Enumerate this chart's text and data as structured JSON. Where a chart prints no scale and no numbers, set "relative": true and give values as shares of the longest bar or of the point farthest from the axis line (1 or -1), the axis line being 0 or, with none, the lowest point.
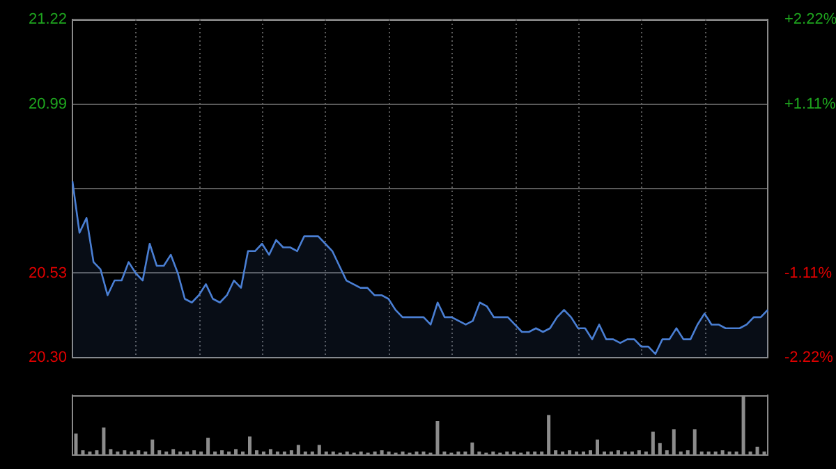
{
  "chart_data": [
    {
      "type": "area",
      "categories": [
        null,
        null,
        null,
        null,
        null,
        null,
        null,
        null,
        null,
        null,
        null,
        null,
        null,
        null,
        null,
        null,
        null,
        null,
        null,
        null,
        null,
        null,
        null,
        null,
        null,
        null,
        null,
        null,
        null,
        null,
        null,
        null,
        null,
        null,
        null,
        null,
        null,
        null,
        null,
        null,
        null,
        null,
        null,
        null,
        null,
        null,
        null,
        null,
        null,
        null,
        null,
        null,
        null,
        null,
        null,
        null,
        null,
        null,
        null,
        null,
        null,
        null,
        null,
        null,
        null,
        null,
        null,
        null,
        null,
        null,
        null,
        null,
        null,
        null,
        null,
        null,
        null,
        null,
        null,
        null,
        null,
        null,
        null,
        null,
        null,
        null,
        null,
        null,
        null,
        null,
        null,
        null,
        null,
        null,
        null,
        null,
        null,
        null,
        null,
        null
      ],
      "series": [
        {
          "color": "#4a7fd4",
          "values": [
            20.78,
            20.64,
            20.68,
            20.56,
            20.54,
            20.47,
            20.51,
            20.51,
            20.56,
            20.53,
            20.51,
            20.61,
            20.55,
            20.55,
            20.58,
            20.53,
            20.46,
            20.45,
            20.47,
            20.5,
            20.46,
            20.45,
            20.47,
            20.51,
            20.49,
            20.59,
            20.59,
            20.61,
            20.58,
            20.62,
            20.6,
            20.6,
            20.59,
            20.63,
            20.63,
            20.63,
            20.61,
            20.59,
            20.55,
            20.51,
            20.5,
            20.49,
            20.49,
            20.47,
            20.47,
            20.46,
            20.43,
            20.41,
            20.41,
            20.41,
            20.41,
            20.39,
            20.45,
            20.41,
            20.41,
            20.4,
            20.39,
            20.4,
            20.45,
            20.44,
            20.41,
            20.41,
            20.41,
            20.39,
            20.37,
            20.37,
            20.38,
            20.37,
            20.38,
            20.41,
            20.43,
            20.41,
            20.38,
            20.38,
            20.35,
            20.39,
            20.35,
            20.35,
            20.34,
            20.35,
            20.35,
            20.33,
            20.33,
            20.31,
            20.35,
            20.35,
            20.38,
            20.35,
            20.35,
            20.39,
            20.42,
            20.39,
            20.39,
            20.38,
            20.38,
            20.38,
            20.39,
            20.41,
            20.41,
            20.43
          ]
        }
      ],
      "ylim": [
        20.3,
        21.22
      ],
      "yticks": [
        {
          "value": 20.3,
          "label": "20.30"
        },
        20.53,
        {
          "value": 20.76,
          "label": null
        },
        20.99,
        21.22
      ],
      "y2lim": [
        -2.22,
        2.22
      ],
      "y2ticks": [
        {
          "value": -2.22,
          "label": "-2.22%"
        },
        {
          "value": -1.11,
          "label": "-1.11%"
        },
        {
          "value": 1.11,
          "label": "+1.11%"
        },
        {
          "value": 2.22,
          "label": "+2.22%"
        }
      ],
      "grid": true,
      "legend": false,
      "marker": "none",
      "line_style": "solid",
      "tick_labels": "y"
    },
    {
      "type": "bar",
      "categories": [
        null,
        null,
        null,
        null,
        null,
        null,
        null,
        null,
        null,
        null,
        null,
        null,
        null,
        null,
        null,
        null,
        null,
        null,
        null,
        null,
        null,
        null,
        null,
        null,
        null,
        null,
        null,
        null,
        null,
        null,
        null,
        null,
        null,
        null,
        null,
        null,
        null,
        null,
        null,
        null,
        null,
        null,
        null,
        null,
        null,
        null,
        null,
        null,
        null,
        null,
        null,
        null,
        null,
        null,
        null,
        null,
        null,
        null,
        null,
        null,
        null,
        null,
        null,
        null,
        null,
        null,
        null,
        null,
        null,
        null,
        null,
        null,
        null,
        null,
        null,
        null,
        null,
        null,
        null,
        null,
        null,
        null,
        null,
        null,
        null,
        null,
        null,
        null,
        null,
        null,
        null,
        null,
        null,
        null,
        null,
        null,
        null,
        null,
        null,
        null
      ],
      "values": [
        0.36,
        0.08,
        0.06,
        0.08,
        0.46,
        0.1,
        0.06,
        0.08,
        0.06,
        0.08,
        0.06,
        0.26,
        0.08,
        0.06,
        0.1,
        0.06,
        0.06,
        0.08,
        0.06,
        0.29,
        0.06,
        0.08,
        0.06,
        0.1,
        0.06,
        0.31,
        0.08,
        0.06,
        0.1,
        0.06,
        0.06,
        0.08,
        0.17,
        0.06,
        0.06,
        0.17,
        0.06,
        0.06,
        0.04,
        0.06,
        0.04,
        0.06,
        0.04,
        0.06,
        0.08,
        0.06,
        0.04,
        0.06,
        0.04,
        0.06,
        0.06,
        0.04,
        0.57,
        0.06,
        0.04,
        0.06,
        0.06,
        0.21,
        0.06,
        0.04,
        0.06,
        0.04,
        0.06,
        0.06,
        0.04,
        0.06,
        0.06,
        0.06,
        0.67,
        0.08,
        0.06,
        0.08,
        0.06,
        0.06,
        0.08,
        0.26,
        0.06,
        0.06,
        0.08,
        0.06,
        0.06,
        0.08,
        0.06,
        0.39,
        0.2,
        0.08,
        0.43,
        0.06,
        0.08,
        0.43,
        0.06,
        0.06,
        0.06,
        0.08,
        0.06,
        0.06,
        1,
        0.06,
        0.14,
        0.06
      ],
      "color": "#8c8c8c",
      "relative": true,
      "legend": false,
      "tick_labels": false
    }
  ]
}
